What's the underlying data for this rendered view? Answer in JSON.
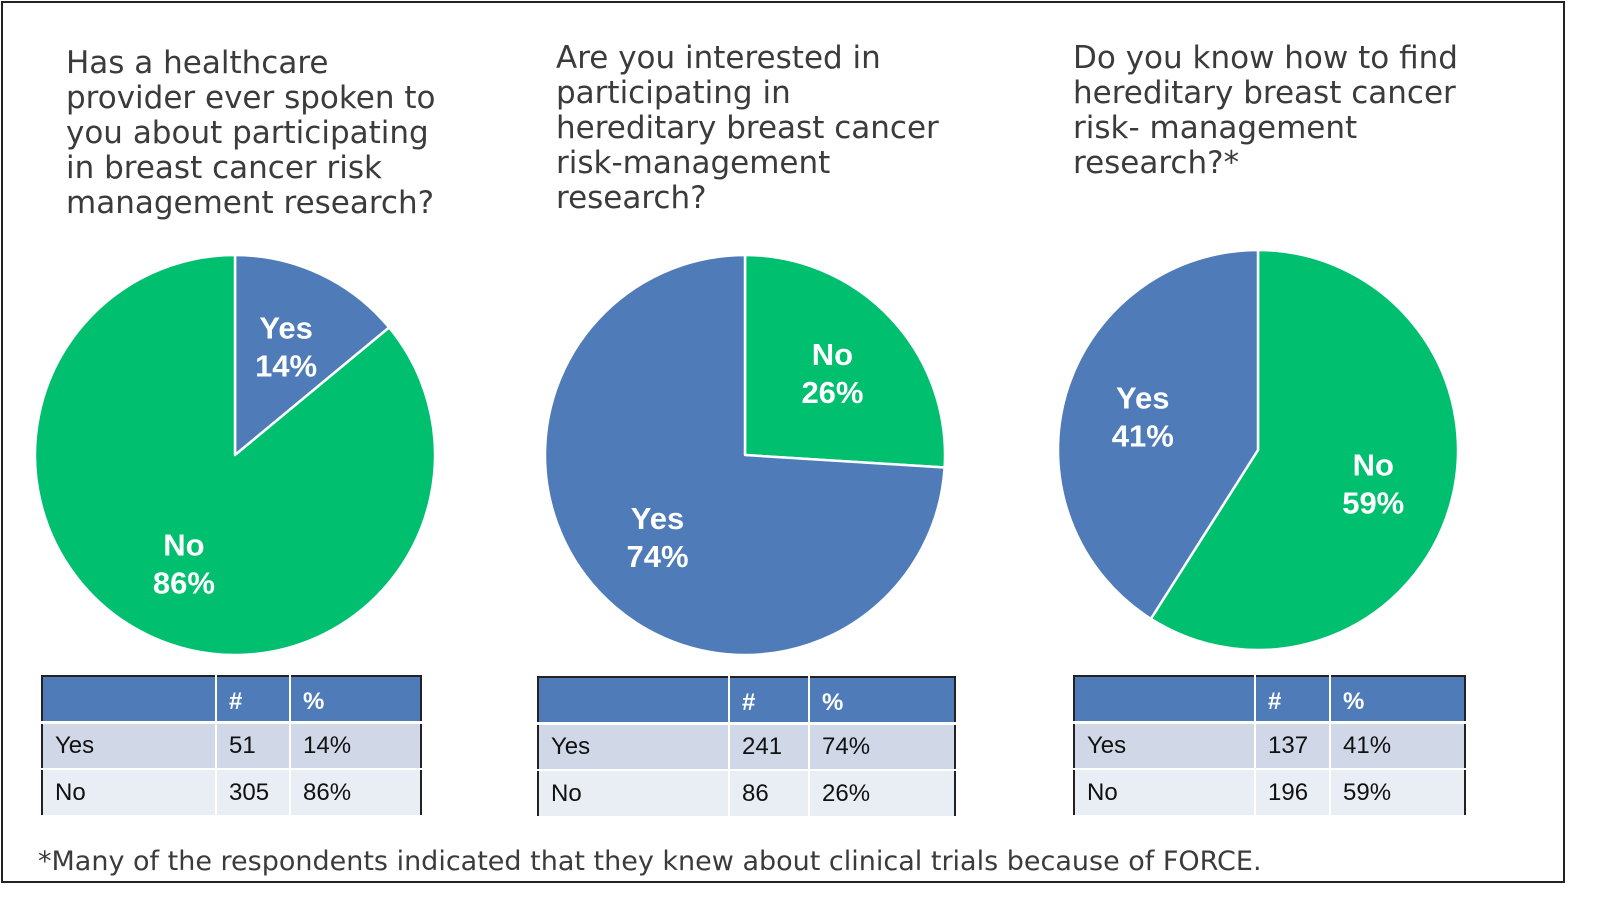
{
  "colors": {
    "yes": "#4f7cb8",
    "no": "#00bf6f",
    "header": "#4f7cb8",
    "row_odd": "#d0d8e8",
    "row_even": "#e9edf4"
  },
  "panels": [
    {
      "question": "Has a healthcare\nprovider ever spoken to\nyou about participating\nin breast cancer risk\nmanagement research?",
      "table": {
        "headers": [
          "",
          "#",
          "%"
        ],
        "rows": [
          [
            "Yes",
            "51",
            "14%"
          ],
          [
            "No",
            "305",
            "86%"
          ]
        ]
      }
    },
    {
      "question": "Are you interested in\nparticipating in\nhereditary breast cancer\nrisk-management\nresearch?",
      "table": {
        "headers": [
          "",
          "#",
          "%"
        ],
        "rows": [
          [
            "Yes",
            "241",
            "74%"
          ],
          [
            "No",
            "86",
            "26%"
          ]
        ]
      }
    },
    {
      "question": "Do you know how to find\nhereditary breast cancer\nrisk- management\nresearch?*",
      "table": {
        "headers": [
          "",
          "#",
          "%"
        ],
        "rows": [
          [
            "Yes",
            "137",
            "41%"
          ],
          [
            "No",
            "196",
            "59%"
          ]
        ]
      }
    }
  ],
  "footnote": "*Many of the respondents indicated that they knew about clinical trials because of FORCE.",
  "chart_data": [
    {
      "type": "pie",
      "title": "Has a healthcare provider ever spoken to you about participating in breast cancer risk management research?",
      "slices": [
        {
          "label": "Yes",
          "value": 14,
          "display": "14%",
          "color": "#4f7cb8"
        },
        {
          "label": "No",
          "value": 86,
          "display": "86%",
          "color": "#00bf6f"
        }
      ]
    },
    {
      "type": "pie",
      "title": "Are you interested in participating in hereditary breast cancer risk-management research?",
      "slices": [
        {
          "label": "No",
          "value": 26,
          "display": "26%",
          "color": "#00bf6f"
        },
        {
          "label": "Yes",
          "value": 74,
          "display": "74%",
          "color": "#4f7cb8"
        }
      ]
    },
    {
      "type": "pie",
      "title": "Do you know how to find hereditary breast cancer risk- management research?*",
      "slices": [
        {
          "label": "No",
          "value": 59,
          "display": "59%",
          "color": "#00bf6f"
        },
        {
          "label": "Yes",
          "value": 41,
          "display": "41%",
          "color": "#4f7cb8"
        }
      ]
    }
  ]
}
